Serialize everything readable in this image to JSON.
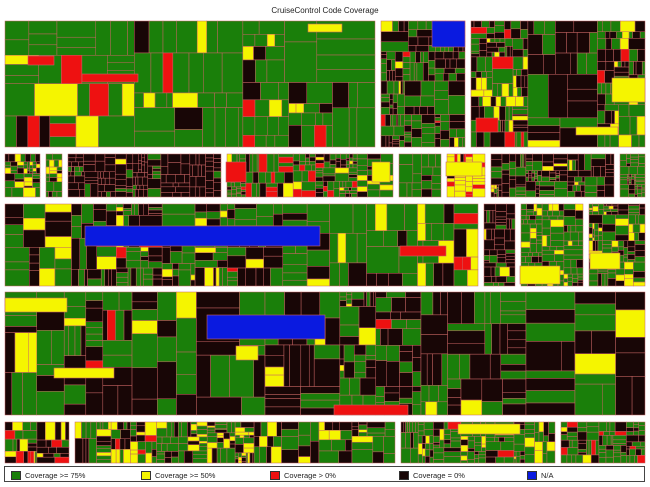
{
  "title": "CruiseControl Code Coverage",
  "colors": {
    "high": "#1a7f0a",
    "medium": "#f5f500",
    "low": "#ee1111",
    "zero": "#180606",
    "na": "#0a1ae0",
    "border_outer": "#ffffff",
    "border_inner": "#c86464"
  },
  "legend": [
    {
      "label": "Coverage >= 75%",
      "color": "#1a7f0a"
    },
    {
      "label": "Coverage >= 50%",
      "color": "#f5f500"
    },
    {
      "label": "Coverage > 0%",
      "color": "#ee1111"
    },
    {
      "label": "Coverage = 0%",
      "color": "#180606"
    },
    {
      "label": "N/A",
      "color": "#0a1ae0"
    }
  ]
}
